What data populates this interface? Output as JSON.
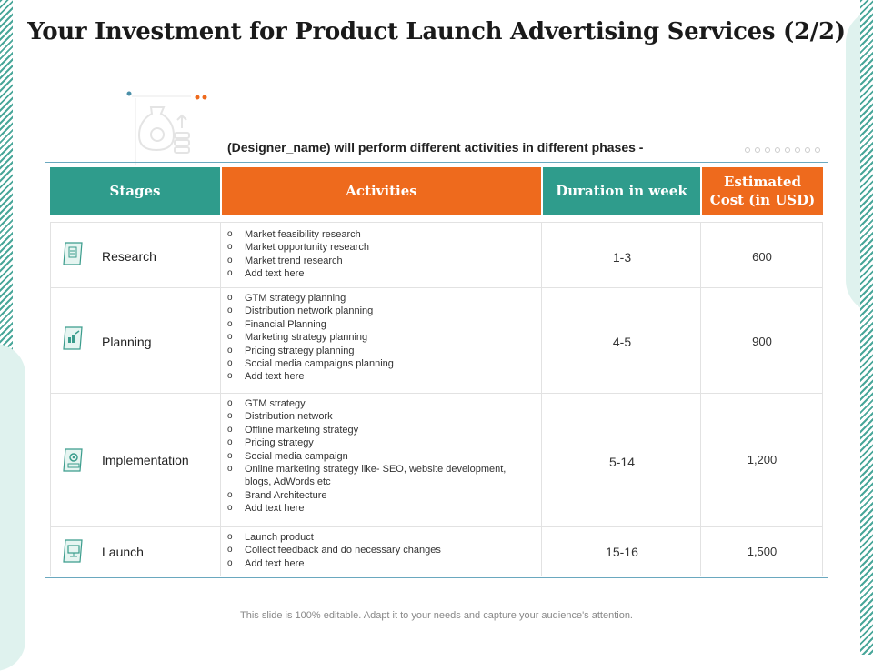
{
  "title": "Your Investment for Product Launch Advertising Services (2/2)",
  "subtitle": "(Designer_name) will perform different activities in different phases -",
  "colors": {
    "teal": "#2f9c8c",
    "orange": "#ee6a1d",
    "border": "#6aa8bf"
  },
  "headers": {
    "stages": "Stages",
    "activities": "Activities",
    "duration": "Duration in week",
    "cost_line1": "Estimated",
    "cost_line2": "Cost (in USD)"
  },
  "rows": [
    {
      "stage": "Research",
      "icon": "research-clipboard-icon",
      "activities": [
        "Market feasibility research",
        "Market opportunity research",
        "Market trend research",
        "Add text here"
      ],
      "duration": "1-3",
      "cost": "600"
    },
    {
      "stage": "Planning",
      "icon": "planning-chart-icon",
      "activities": [
        "GTM strategy planning",
        "Distribution network planning",
        "Financial Planning",
        "Marketing strategy planning",
        "Pricing strategy planning",
        "Social media campaigns planning",
        "Add text here"
      ],
      "duration": "4-5",
      "cost": "900"
    },
    {
      "stage": "Implementation",
      "icon": "implementation-gear-icon",
      "activities": [
        "GTM strategy",
        "Distribution network",
        "Offline marketing strategy",
        "Pricing strategy",
        "Social media campaign",
        "Online marketing strategy like- SEO, website development,",
        "blogs, AdWords etc",
        "Brand Architecture",
        "Add text here"
      ],
      "duration": "5-14",
      "cost": "1,200"
    },
    {
      "stage": "Launch",
      "icon": "launch-monitor-icon",
      "activities": [
        "Launch product",
        "Collect feedback and do necessary changes",
        "Add text here"
      ],
      "duration": "15-16",
      "cost": "1,500"
    }
  ],
  "footer": "This slide is 100% editable. Adapt it to your needs and capture your audience's attention."
}
